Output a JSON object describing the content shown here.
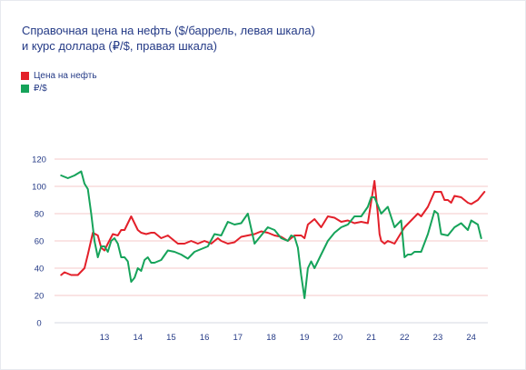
{
  "title_lines": [
    "Справочная цена на нефть ($/баррель, левая шкала)",
    "и курс доллара (₽/$, правая шкала)"
  ],
  "colors": {
    "oil": "#e3202a",
    "rub": "#16a35a",
    "text": "#243a86",
    "grid": "#f0b7b9"
  },
  "chart_data": {
    "type": "line",
    "title": "Справочная цена на нефть ($/баррель, левая шкала) и курс доллара (₽/$, правая шкала)",
    "y_ticks": [
      "0",
      "20",
      "40",
      "60",
      "80",
      "100",
      "120"
    ],
    "x_ticks": [
      "13",
      "14",
      "15",
      "16",
      "17",
      "18",
      "19",
      "20",
      "21",
      "22",
      "23",
      "24"
    ],
    "ylim": [
      0,
      120
    ],
    "grid": "horizontal",
    "legend_position": "top-left",
    "series": [
      {
        "name": "Цена на нефть",
        "color": "#e3202a",
        "x": [
          12.2,
          12.3,
          12.5,
          12.7,
          12.9,
          13.0,
          13.15,
          13.3,
          13.4,
          13.5,
          13.6,
          13.75,
          13.9,
          14.0,
          14.1,
          14.3,
          14.5,
          14.6,
          14.75,
          14.9,
          15.0,
          15.2,
          15.4,
          15.5,
          15.7,
          15.9,
          16.1,
          16.3,
          16.5,
          16.7,
          16.9,
          17.0,
          17.2,
          17.4,
          17.6,
          17.8,
          18.0,
          18.2,
          18.4,
          18.6,
          18.8,
          19.0,
          19.2,
          19.4,
          19.5,
          19.6,
          19.8,
          20.0,
          20.2,
          20.4,
          20.6,
          20.8,
          21.0,
          21.2,
          21.4,
          21.6,
          21.7,
          21.75,
          21.8,
          21.9,
          22.0,
          22.2,
          22.4,
          22.5,
          22.7,
          22.9,
          23.0,
          23.2,
          23.4,
          23.6,
          23.7,
          23.8,
          23.9,
          24.0,
          24.2,
          24.4,
          24.5,
          24.7,
          24.9
        ],
        "values": [
          35,
          37,
          35,
          35,
          40,
          50,
          66,
          64,
          55,
          53,
          58,
          65,
          64,
          68,
          68,
          78,
          68,
          66,
          65,
          66,
          66,
          62,
          64,
          62,
          58,
          58,
          60,
          58,
          60,
          58,
          62,
          60,
          58,
          59,
          63,
          64,
          65,
          67,
          66,
          64,
          63,
          60,
          64,
          64,
          62,
          72,
          76,
          70,
          78,
          77,
          74,
          75,
          73,
          74,
          73,
          104,
          80,
          65,
          60,
          58,
          60,
          58,
          66,
          70,
          75,
          80,
          78,
          85,
          96,
          96,
          90,
          90,
          88,
          93,
          92,
          88,
          87,
          90,
          96
        ]
      },
      {
        "name": "₽/$",
        "color": "#16a35a",
        "x": [
          12.2,
          12.4,
          12.6,
          12.8,
          12.9,
          13.0,
          13.1,
          13.2,
          13.3,
          13.4,
          13.5,
          13.6,
          13.7,
          13.8,
          13.9,
          14.0,
          14.1,
          14.2,
          14.3,
          14.4,
          14.5,
          14.6,
          14.7,
          14.8,
          14.9,
          15.0,
          15.2,
          15.4,
          15.6,
          15.8,
          16.0,
          16.2,
          16.4,
          16.6,
          16.8,
          17.0,
          17.2,
          17.4,
          17.6,
          17.8,
          18.0,
          18.2,
          18.4,
          18.6,
          18.8,
          19.0,
          19.1,
          19.2,
          19.3,
          19.4,
          19.5,
          19.6,
          19.7,
          19.8,
          20.0,
          20.2,
          20.4,
          20.6,
          20.8,
          21.0,
          21.2,
          21.4,
          21.5,
          21.6,
          21.8,
          22.0,
          22.2,
          22.4,
          22.5,
          22.6,
          22.7,
          22.8,
          23.0,
          23.2,
          23.4,
          23.5,
          23.6,
          23.8,
          24.0,
          24.2,
          24.4,
          24.5,
          24.7,
          24.8
        ],
        "values": [
          108,
          106,
          108,
          111,
          102,
          98,
          80,
          60,
          48,
          56,
          56,
          52,
          60,
          62,
          58,
          48,
          48,
          45,
          30,
          33,
          40,
          38,
          46,
          48,
          44,
          44,
          46,
          53,
          52,
          50,
          47,
          52,
          54,
          56,
          65,
          64,
          74,
          72,
          73,
          80,
          58,
          64,
          70,
          68,
          62,
          60,
          64,
          63,
          55,
          35,
          18,
          40,
          45,
          40,
          50,
          60,
          66,
          70,
          72,
          78,
          78,
          85,
          92,
          92,
          80,
          85,
          70,
          75,
          48,
          50,
          50,
          52,
          52,
          65,
          82,
          80,
          65,
          64,
          70,
          73,
          68,
          75,
          72,
          62
        ]
      }
    ]
  },
  "legend": {
    "items": [
      {
        "label": "Цена на нефть",
        "color": "#e3202a"
      },
      {
        "label": "₽/$",
        "color": "#16a35a"
      }
    ]
  }
}
